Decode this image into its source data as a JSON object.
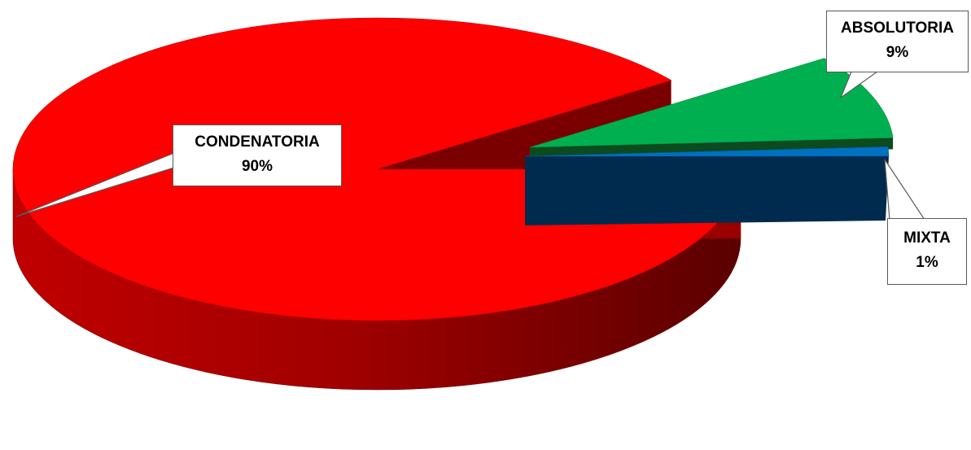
{
  "chart_data": {
    "type": "pie",
    "title": "",
    "slices": [
      {
        "label": "CONDENATORIA",
        "value": 90,
        "value_label": "90%",
        "color": "#ff0000",
        "side_color": "#8b0000"
      },
      {
        "label": "ABSOLUTORIA",
        "value": 9,
        "value_label": "9%",
        "color": "#00b050",
        "side_color": "#0c4a1f"
      },
      {
        "label": "MIXTA",
        "value": 1,
        "value_label": "1%",
        "color": "#0070c0",
        "side_color": "#002b4e"
      }
    ],
    "style": "3d-exploded",
    "legend": "none"
  }
}
